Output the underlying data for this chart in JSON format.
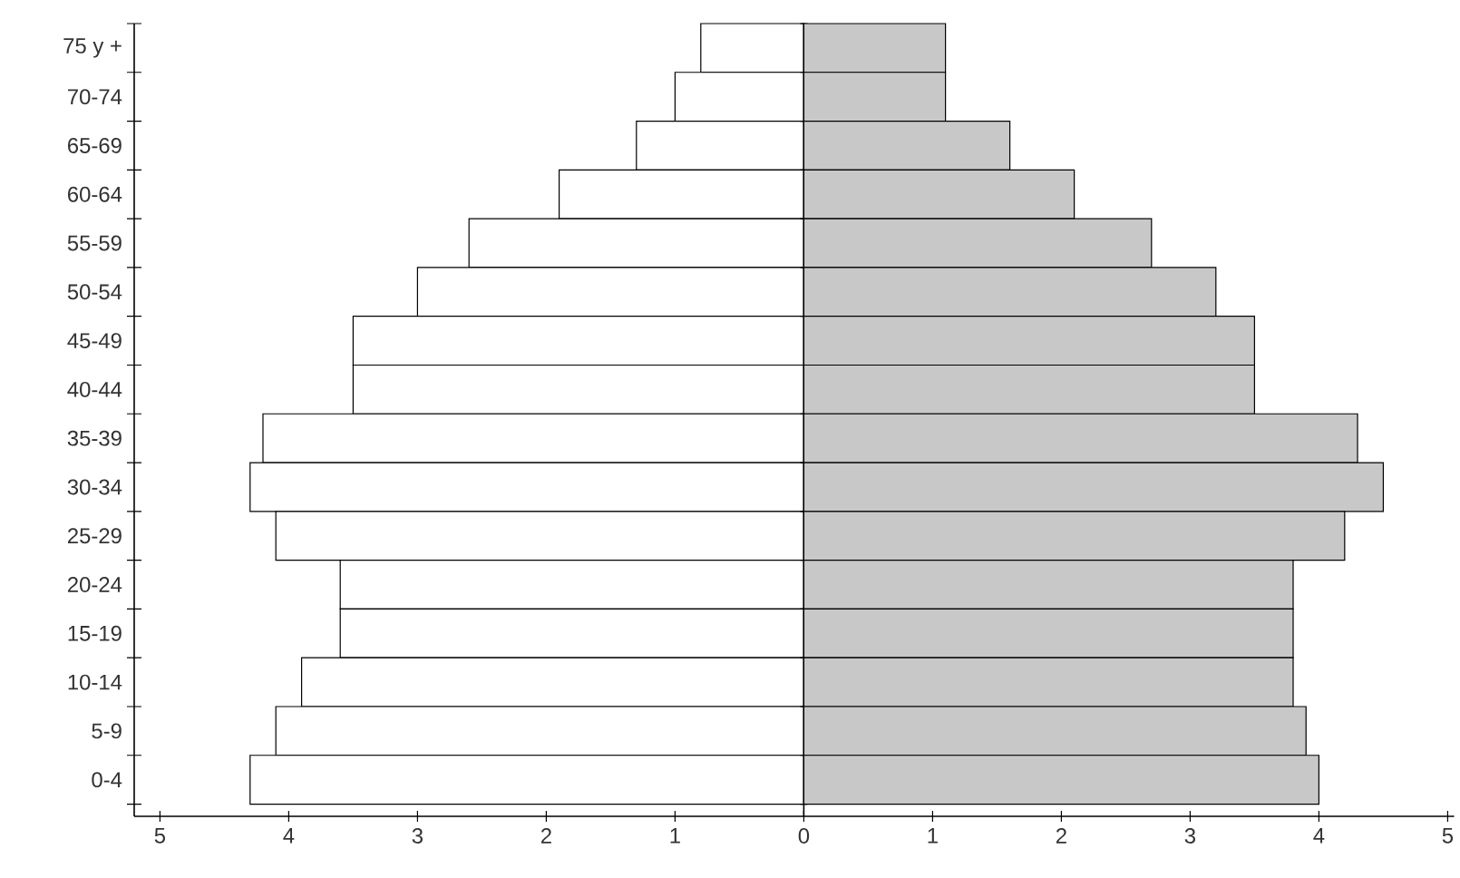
{
  "chart_data": [
    {
      "type": "bar",
      "orientation": "horizontal",
      "categories": [
        "75 y +",
        "70-74",
        "65-69",
        "60-64",
        "55-59",
        "50-54",
        "45-49",
        "40-44",
        "35-39",
        "30-34",
        "25-29",
        "20-24",
        "15-19",
        "10-14",
        "5-9",
        "0-4"
      ],
      "series": [
        {
          "color": "#ffffff",
          "values": [
            0.8,
            1.0,
            1.3,
            1.9,
            2.6,
            3.0,
            3.5,
            3.5,
            4.2,
            4.3,
            4.1,
            3.6,
            3.6,
            3.9,
            4.1,
            4.3
          ]
        }
      ],
      "xlim": [
        5.2,
        0
      ],
      "xticks": [
        5,
        4,
        3,
        2,
        1
      ]
    },
    {
      "type": "bar",
      "orientation": "horizontal",
      "categories": [
        null,
        null,
        null,
        null,
        null,
        null,
        null,
        null,
        null,
        null,
        null,
        null,
        null,
        null,
        null,
        null
      ],
      "series": [
        {
          "color": "#c8c8c8",
          "values": [
            1.1,
            1.1,
            1.6,
            2.1,
            2.7,
            3.2,
            3.5,
            3.5,
            4.3,
            4.5,
            4.2,
            3.8,
            3.8,
            3.8,
            3.9,
            4.0
          ]
        }
      ],
      "xlim": [
        0,
        5.05
      ],
      "xticks": [
        0,
        1,
        2,
        3,
        4,
        5
      ]
    }
  ]
}
